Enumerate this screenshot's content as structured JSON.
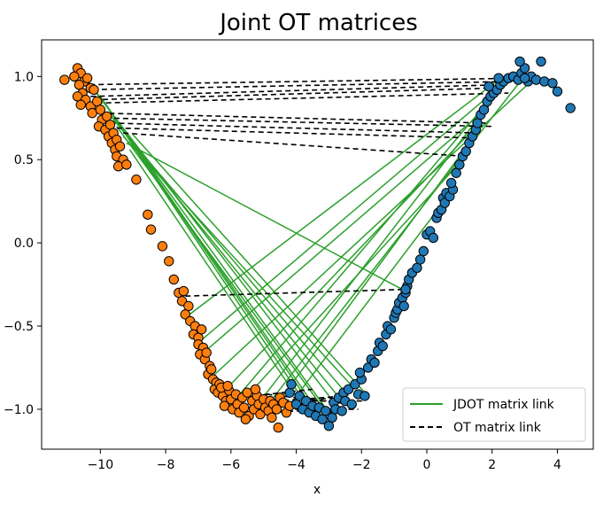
{
  "chart_data": {
    "type": "scatter",
    "title": "Joint OT matrices",
    "xlabel": "x",
    "ylabel": "",
    "xlim": [
      -11.8,
      5.1
    ],
    "ylim": [
      -1.24,
      1.22
    ],
    "xticks": [
      -10,
      -8,
      -6,
      -4,
      -2,
      0,
      2,
      4
    ],
    "yticks": [
      -1.0,
      -0.5,
      0.0,
      0.5,
      1.0
    ],
    "xtick_labels": [
      "−10",
      "−8",
      "−6",
      "−4",
      "−2",
      "0",
      "2",
      "4"
    ],
    "ytick_labels": [
      "−1.0",
      "−0.5",
      "0.0",
      "0.5",
      "1.0"
    ],
    "grid": false,
    "legend_position": "lower-right",
    "colors": {
      "source": "#ff7f0e",
      "target": "#1f77b4",
      "jdot": "#2ca02c",
      "ot": "#000000",
      "marker_edge": "#000000"
    },
    "series": [
      {
        "kind": "points",
        "color": "#ff7f0e",
        "points": [
          [
            -11.1,
            0.98
          ],
          [
            -10.7,
            1.05
          ],
          [
            -10.6,
            1.02
          ],
          [
            -10.8,
            1.0
          ],
          [
            -10.5,
            0.97
          ],
          [
            -10.65,
            0.95
          ],
          [
            -10.4,
            0.99
          ],
          [
            -10.55,
            0.9
          ],
          [
            -10.3,
            0.93
          ],
          [
            -10.7,
            0.88
          ],
          [
            -10.45,
            0.86
          ],
          [
            -10.2,
            0.92
          ],
          [
            -10.6,
            0.83
          ],
          [
            -10.3,
            0.82
          ],
          [
            -10.1,
            0.85
          ],
          [
            -10.25,
            0.78
          ],
          [
            -10.0,
            0.8
          ],
          [
            -9.95,
            0.74
          ],
          [
            -9.8,
            0.76
          ],
          [
            -10.05,
            0.7
          ],
          [
            -9.85,
            0.68
          ],
          [
            -9.7,
            0.71
          ],
          [
            -9.75,
            0.64
          ],
          [
            -9.6,
            0.66
          ],
          [
            -9.65,
            0.6
          ],
          [
            -9.5,
            0.62
          ],
          [
            -9.55,
            0.56
          ],
          [
            -9.4,
            0.58
          ],
          [
            -9.5,
            0.52
          ],
          [
            -9.3,
            0.5
          ],
          [
            -9.45,
            0.46
          ],
          [
            -9.2,
            0.47
          ],
          [
            -8.9,
            0.38
          ],
          [
            -8.55,
            0.17
          ],
          [
            -8.45,
            0.08
          ],
          [
            -8.1,
            -0.02
          ],
          [
            -7.9,
            -0.11
          ],
          [
            -7.75,
            -0.22
          ],
          [
            -7.6,
            -0.3
          ],
          [
            -7.5,
            -0.35
          ],
          [
            -7.45,
            -0.29
          ],
          [
            -7.3,
            -0.38
          ],
          [
            -7.4,
            -0.43
          ],
          [
            -7.25,
            -0.47
          ],
          [
            -7.1,
            -0.5
          ],
          [
            -7.15,
            -0.55
          ],
          [
            -7.0,
            -0.57
          ],
          [
            -6.9,
            -0.52
          ],
          [
            -7.0,
            -0.61
          ],
          [
            -6.85,
            -0.63
          ],
          [
            -6.95,
            -0.67
          ],
          [
            -6.8,
            -0.7
          ],
          [
            -6.75,
            -0.66
          ],
          [
            -6.65,
            -0.74
          ],
          [
            -6.7,
            -0.79
          ],
          [
            -6.55,
            -0.82
          ],
          [
            -6.6,
            -0.76
          ],
          [
            -6.45,
            -0.84
          ],
          [
            -6.5,
            -0.88
          ],
          [
            -6.35,
            -0.85
          ],
          [
            -6.4,
            -0.9
          ],
          [
            -6.25,
            -0.92
          ],
          [
            -6.3,
            -0.87
          ],
          [
            -6.15,
            -0.95
          ],
          [
            -6.2,
            -0.98
          ],
          [
            -6.05,
            -0.89
          ],
          [
            -6.0,
            -0.94
          ],
          [
            -5.95,
            -1.0
          ],
          [
            -5.85,
            -0.91
          ],
          [
            -5.8,
            -0.97
          ],
          [
            -5.75,
            -1.02
          ],
          [
            -5.65,
            -0.93
          ],
          [
            -5.6,
            -0.99
          ],
          [
            -5.5,
            -0.9
          ],
          [
            -5.45,
            -1.04
          ],
          [
            -5.35,
            -0.95
          ],
          [
            -5.3,
            -1.0
          ],
          [
            -5.2,
            -0.92
          ],
          [
            -5.15,
            -0.97
          ],
          [
            -5.1,
            -1.03
          ],
          [
            -5.0,
            -0.94
          ],
          [
            -4.95,
            -0.99
          ],
          [
            -4.85,
            -1.01
          ],
          [
            -4.8,
            -0.95
          ],
          [
            -4.7,
            -0.97
          ],
          [
            -4.6,
            -1.0
          ],
          [
            -4.5,
            -0.93
          ],
          [
            -4.4,
            -0.96
          ],
          [
            -4.3,
            -1.02
          ],
          [
            -4.2,
            -0.98
          ],
          [
            -4.55,
            -1.11
          ],
          [
            -5.55,
            -1.06
          ],
          [
            -4.75,
            -1.05
          ],
          [
            -6.1,
            -0.86
          ],
          [
            -5.25,
            -0.88
          ]
        ]
      },
      {
        "kind": "points",
        "color": "#1f77b4",
        "points": [
          [
            -4.2,
            -0.9
          ],
          [
            -4.15,
            -0.85
          ],
          [
            -4.0,
            -0.97
          ],
          [
            -3.9,
            -0.92
          ],
          [
            -3.8,
            -1.0
          ],
          [
            -3.7,
            -0.95
          ],
          [
            -3.6,
            -1.02
          ],
          [
            -3.5,
            -0.98
          ],
          [
            -3.4,
            -1.04
          ],
          [
            -3.3,
            -0.99
          ],
          [
            -3.2,
            -1.06
          ],
          [
            -3.1,
            -1.01
          ],
          [
            -3.0,
            -1.1
          ],
          [
            -2.9,
            -1.05
          ],
          [
            -2.85,
            -0.96
          ],
          [
            -2.8,
            -1.0
          ],
          [
            -2.7,
            -0.93
          ],
          [
            -2.6,
            -1.01
          ],
          [
            -2.55,
            -0.9
          ],
          [
            -2.5,
            -0.95
          ],
          [
            -2.4,
            -0.88
          ],
          [
            -2.3,
            -0.97
          ],
          [
            -2.2,
            -0.85
          ],
          [
            -2.1,
            -0.91
          ],
          [
            -2.0,
            -0.82
          ],
          [
            -1.9,
            -0.92
          ],
          [
            -2.05,
            -0.78
          ],
          [
            -1.8,
            -0.75
          ],
          [
            -1.7,
            -0.7
          ],
          [
            -1.6,
            -0.72
          ],
          [
            -1.5,
            -0.65
          ],
          [
            -1.45,
            -0.6
          ],
          [
            -1.35,
            -0.62
          ],
          [
            -1.25,
            -0.55
          ],
          [
            -1.2,
            -0.5
          ],
          [
            -1.1,
            -0.52
          ],
          [
            -1.0,
            -0.45
          ],
          [
            -0.95,
            -0.42
          ],
          [
            -0.9,
            -0.4
          ],
          [
            -0.85,
            -0.36
          ],
          [
            -0.75,
            -0.33
          ],
          [
            -0.7,
            -0.38
          ],
          [
            -0.65,
            -0.3
          ],
          [
            -0.6,
            -0.26
          ],
          [
            -0.55,
            -0.22
          ],
          [
            -0.45,
            -0.18
          ],
          [
            -0.3,
            -0.15
          ],
          [
            -0.2,
            -0.1
          ],
          [
            -0.1,
            -0.05
          ],
          [
            0.0,
            0.05
          ],
          [
            0.1,
            0.07
          ],
          [
            0.2,
            0.03
          ],
          [
            0.3,
            0.15
          ],
          [
            0.35,
            0.18
          ],
          [
            0.45,
            0.2
          ],
          [
            0.5,
            0.27
          ],
          [
            0.6,
            0.3
          ],
          [
            0.55,
            0.24
          ],
          [
            0.7,
            0.28
          ],
          [
            0.8,
            0.32
          ],
          [
            0.75,
            0.36
          ],
          [
            0.9,
            0.42
          ],
          [
            1.0,
            0.47
          ],
          [
            1.1,
            0.52
          ],
          [
            1.2,
            0.55
          ],
          [
            1.3,
            0.6
          ],
          [
            1.4,
            0.64
          ],
          [
            1.5,
            0.68
          ],
          [
            1.55,
            0.72
          ],
          [
            1.65,
            0.77
          ],
          [
            1.75,
            0.8
          ],
          [
            1.85,
            0.85
          ],
          [
            1.95,
            0.88
          ],
          [
            2.05,
            0.9
          ],
          [
            2.15,
            0.92
          ],
          [
            2.25,
            0.95
          ],
          [
            2.35,
            0.97
          ],
          [
            2.5,
            0.99
          ],
          [
            2.65,
            1.0
          ],
          [
            2.8,
            0.98
          ],
          [
            2.9,
            1.02
          ],
          [
            3.0,
            1.05
          ],
          [
            3.1,
            0.97
          ],
          [
            3.2,
            1.0
          ],
          [
            3.35,
            0.98
          ],
          [
            3.5,
            1.09
          ],
          [
            2.85,
            1.09
          ],
          [
            3.0,
            0.99
          ],
          [
            3.6,
            0.97
          ],
          [
            3.85,
            0.96
          ],
          [
            4.0,
            0.91
          ],
          [
            4.4,
            0.81
          ],
          [
            2.2,
            0.99
          ],
          [
            1.9,
            0.94
          ],
          [
            -0.65,
            -0.28
          ]
        ]
      },
      {
        "name": "JDOT matrix link",
        "kind": "segments",
        "color": "#2ca02c",
        "linestyle": "solid",
        "segments": [
          [
            -10.4,
            0.98,
            -3.0,
            -1.02
          ],
          [
            -10.2,
            0.92,
            -2.8,
            -0.97
          ],
          [
            -10.0,
            0.88,
            -3.2,
            -1.05
          ],
          [
            -9.9,
            0.85,
            -3.5,
            -0.99
          ],
          [
            -9.8,
            0.82,
            -3.7,
            -0.97
          ],
          [
            -9.75,
            0.78,
            -2.6,
            -0.95
          ],
          [
            -9.6,
            0.74,
            -2.4,
            -0.92
          ],
          [
            -9.5,
            0.7,
            -3.0,
            -1.04
          ],
          [
            -9.3,
            0.64,
            -2.2,
            -0.88
          ],
          [
            -9.2,
            0.6,
            -0.75,
            -0.28
          ],
          [
            -9.1,
            0.56,
            -3.9,
            -0.95
          ],
          [
            -9.0,
            0.65,
            -1.9,
            -0.9
          ],
          [
            -7.4,
            -0.45,
            2.2,
            0.98
          ],
          [
            -7.0,
            -0.6,
            2.6,
            1.0
          ],
          [
            -6.9,
            -0.67,
            1.9,
            0.82
          ],
          [
            -6.55,
            -0.8,
            3.3,
            0.99
          ],
          [
            -6.2,
            -0.89,
            1.6,
            0.72
          ],
          [
            -5.9,
            -0.95,
            2.1,
            0.9
          ],
          [
            -5.5,
            -0.92,
            1.0,
            0.48
          ],
          [
            -5.1,
            -0.95,
            1.7,
            0.78
          ],
          [
            -4.9,
            -0.98,
            2.9,
            0.98
          ],
          [
            -4.6,
            -0.97,
            1.3,
            0.6
          ],
          [
            -4.3,
            -1.0,
            0.8,
            0.32
          ]
        ]
      },
      {
        "name": "OT matrix link",
        "kind": "segments",
        "color": "#000000",
        "linestyle": "dashed",
        "segments": [
          [
            -10.6,
            0.95,
            3.0,
            0.99
          ],
          [
            -10.5,
            0.92,
            2.6,
            0.97
          ],
          [
            -10.3,
            0.88,
            2.2,
            0.95
          ],
          [
            -10.2,
            0.86,
            2.0,
            0.93
          ],
          [
            -10.1,
            0.84,
            2.5,
            0.9
          ],
          [
            -10.0,
            0.78,
            1.8,
            0.72
          ],
          [
            -9.85,
            0.75,
            2.0,
            0.7
          ],
          [
            -9.7,
            0.72,
            1.65,
            0.66
          ],
          [
            -9.5,
            0.69,
            1.5,
            0.63
          ],
          [
            -9.3,
            0.66,
            1.2,
            0.52
          ],
          [
            -7.4,
            -0.32,
            -0.7,
            -0.28
          ],
          [
            -5.8,
            -0.93,
            -3.5,
            -0.88
          ],
          [
            -5.2,
            -0.96,
            -2.5,
            -0.92
          ],
          [
            -4.9,
            -0.91,
            -2.3,
            -0.97
          ],
          [
            -4.6,
            -0.98,
            -2.9,
            -0.93
          ],
          [
            -4.3,
            -1.0,
            -2.1,
            -1.0
          ],
          [
            -4.05,
            -0.95,
            -1.9,
            -0.95
          ],
          [
            -3.8,
            -1.0,
            -2.7,
            -1.02
          ],
          [
            -5.5,
            -0.99,
            -3.3,
            -0.96
          ],
          [
            -4.8,
            -1.02,
            -2.1,
            -0.99
          ]
        ]
      }
    ]
  }
}
